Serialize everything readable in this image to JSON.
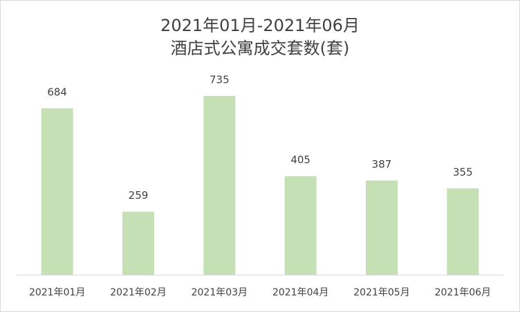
{
  "chart_data": {
    "type": "bar",
    "title": "2021年01月-2021年06月",
    "subtitle": "酒店式公寓成交套数(套)",
    "categories": [
      "2021年01月",
      "2021年02月",
      "2021年03月",
      "2021年04月",
      "2021年05月",
      "2021年06月"
    ],
    "values": [
      684,
      259,
      735,
      405,
      387,
      355
    ],
    "color": "#c5e0b4",
    "ylim": [
      0,
      800
    ]
  }
}
